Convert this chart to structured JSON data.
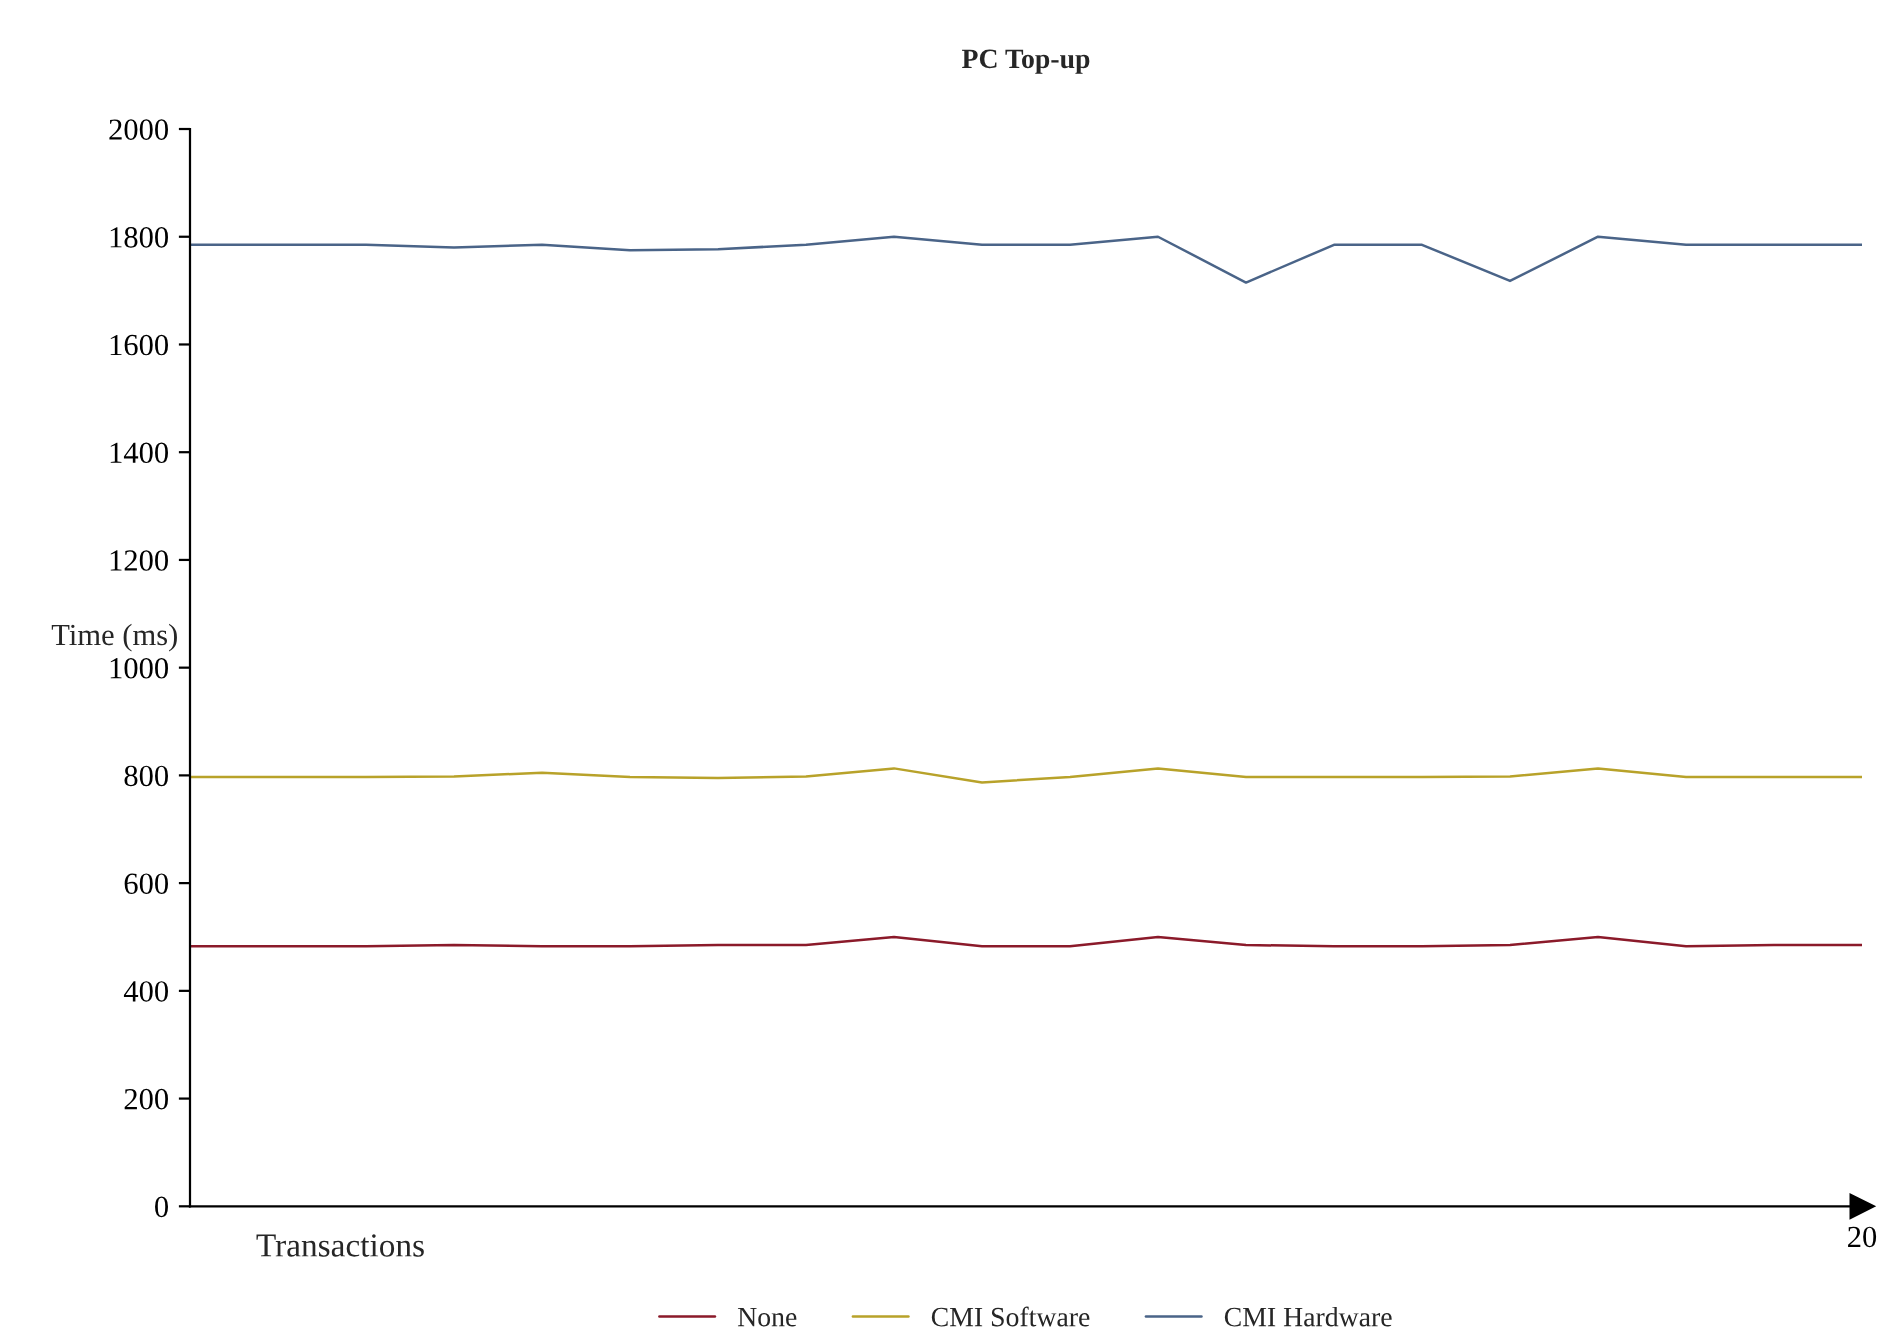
{
  "chart_data": {
    "type": "line",
    "title": "PC Top-up",
    "xlabel": "Transactions",
    "ylabel": "Time (ms)",
    "categories": [
      null,
      null,
      null,
      null,
      null,
      null,
      null,
      null,
      null,
      null,
      null,
      null,
      null,
      null,
      null,
      null,
      null,
      null,
      null,
      "20"
    ],
    "series": [
      {
        "name": "None",
        "color": "#8b1a2a",
        "values": [
          483,
          483,
          483,
          485,
          483,
          483,
          485,
          485,
          500,
          483,
          483,
          500,
          485,
          483,
          483,
          485,
          500,
          483,
          485,
          485
        ]
      },
      {
        "name": "CMI Software",
        "color": "#b8a22a",
        "values": [
          797,
          797,
          797,
          798,
          805,
          797,
          795,
          798,
          813,
          787,
          797,
          813,
          797,
          797,
          797,
          798,
          813,
          797,
          797,
          797
        ]
      },
      {
        "name": "CMI Hardware",
        "color": "#4a6488",
        "values": [
          1785,
          1785,
          1785,
          1780,
          1785,
          1775,
          1777,
          1785,
          1800,
          1785,
          1785,
          1800,
          1715,
          1785,
          1785,
          1718,
          1800,
          1785,
          1785,
          1785
        ]
      }
    ],
    "ylim": [
      0,
      2000
    ],
    "yticks": [
      0,
      200,
      400,
      600,
      800,
      1000,
      1200,
      1400,
      1600,
      1800,
      2000
    ],
    "grid": false,
    "legend": "bottom",
    "marker": "none",
    "line_style": "solid"
  }
}
